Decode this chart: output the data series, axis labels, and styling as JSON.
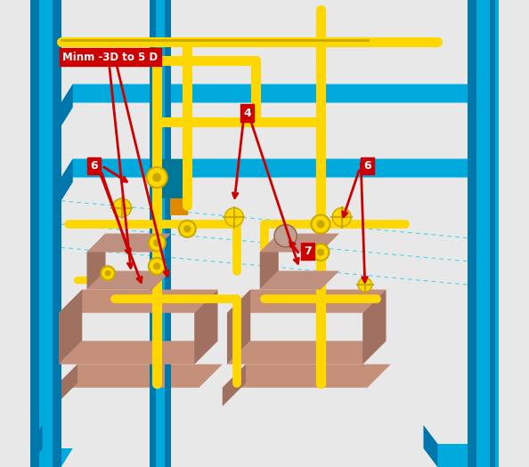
{
  "background_color": "#e8e8e8",
  "blue_column": "#00AADD",
  "blue_dark": "#0077AA",
  "yellow_pipe": "#FFD700",
  "yellow_dark": "#C8A800",
  "orange_support": "#E08800",
  "pump_base": "#C4907A",
  "pump_base_dark": "#A07060",
  "pump_body": "#BF9080",
  "pump_body_dark": "#A07060",
  "pump_dome": "#C0A090",
  "pump_dome_ec": "#906050",
  "dashed_line": "#00CCEE",
  "red_label": "#CC0000",
  "teal_bracket": "#007799",
  "white": "#FFFFFF"
}
